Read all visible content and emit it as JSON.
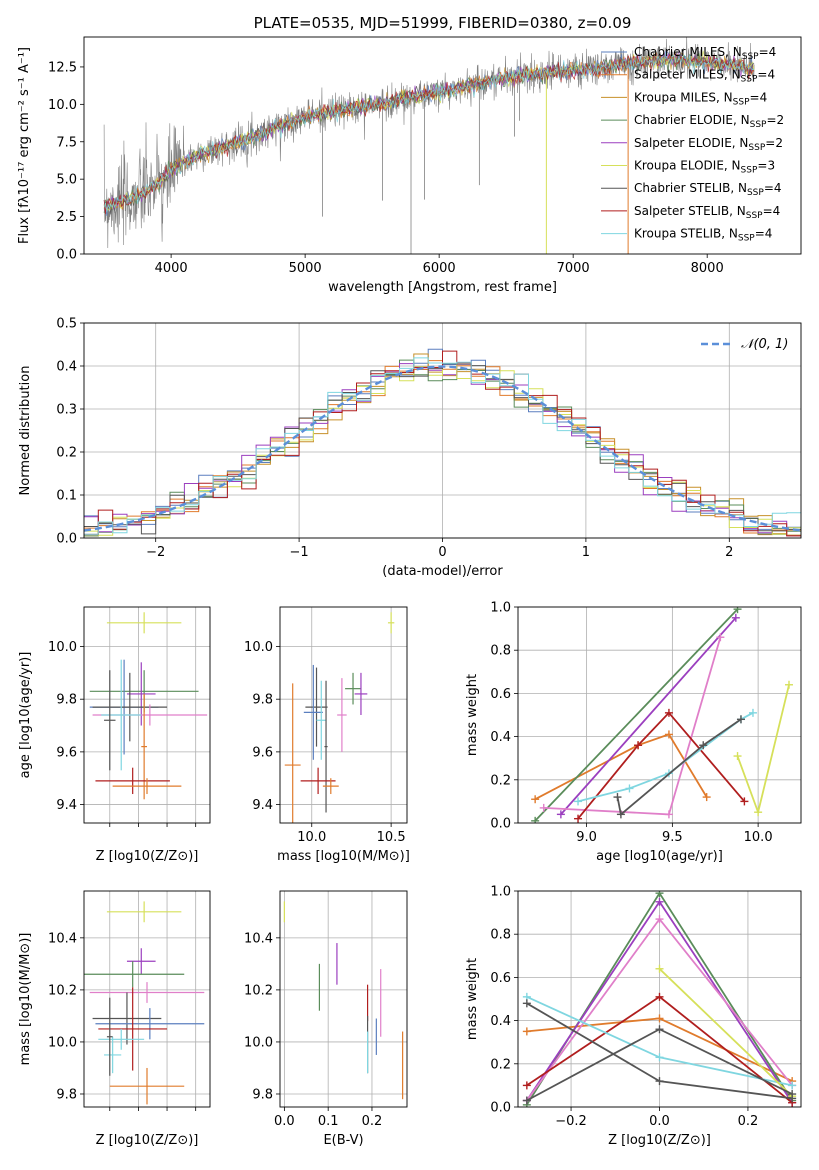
{
  "palette": [
    "#5b7fbf",
    "#e07b2c",
    "#c7902a",
    "#5a8c5a",
    "#9b3fbf",
    "#d6e05a",
    "#555555",
    "#b01e1e",
    "#7fd6e0",
    "#e07fc9"
  ],
  "chart_data": [
    {
      "id": "spectrum",
      "type": "line",
      "title": "PLATE=0535, MJD=51999, FIBERID=0380, z=0.09",
      "xlabel": "wavelength [Angstrom, rest frame]",
      "ylabel": "Flux [fλ10⁻¹⁷ erg cm⁻² s⁻¹ A⁻¹]",
      "xlim": [
        3350,
        8700
      ],
      "ylim": [
        0,
        14.5
      ],
      "xticks": [
        4000,
        5000,
        6000,
        7000,
        8000
      ],
      "yticks": [
        0.0,
        2.5,
        5.0,
        7.5,
        10.0,
        12.5
      ],
      "legend_position": "top-right",
      "legend": [
        "Chabrier MILES, N_SSP=4",
        "Salpeter MILES, N_SSP=4",
        "Kroupa MILES, N_SSP=4",
        "Chabrier ELODIE, N_SSP=2",
        "Salpeter ELODIE, N_SSP=2",
        "Kroupa ELODIE, N_SSP=3",
        "Chabrier STELIB, N_SSP=4",
        "Salpeter STELIB, N_SSP=4",
        "Kroupa STELIB, N_SSP=4"
      ],
      "continuum": [
        [
          3500,
          3.2
        ],
        [
          3700,
          3.6
        ],
        [
          3900,
          4.6
        ],
        [
          4000,
          5.6
        ],
        [
          4200,
          6.6
        ],
        [
          4400,
          7.2
        ],
        [
          4600,
          7.8
        ],
        [
          4800,
          8.5
        ],
        [
          5000,
          9.2
        ],
        [
          5200,
          9.5
        ],
        [
          5400,
          9.8
        ],
        [
          5600,
          10.1
        ],
        [
          5800,
          10.5
        ],
        [
          6000,
          10.8
        ],
        [
          6200,
          11.2
        ],
        [
          6400,
          11.6
        ],
        [
          6600,
          11.9
        ],
        [
          6800,
          12.1
        ],
        [
          7000,
          12.3
        ],
        [
          7200,
          12.4
        ],
        [
          7400,
          12.7
        ],
        [
          7600,
          12.9
        ],
        [
          7800,
          13.0
        ],
        [
          8000,
          12.8
        ],
        [
          8200,
          12.6
        ],
        [
          8350,
          12.4
        ]
      ],
      "grid": false
    },
    {
      "id": "residuals",
      "type": "histogram",
      "xlabel": "(data-model)/error",
      "ylabel": "Normed distribution",
      "xlim": [
        -2.5,
        2.5
      ],
      "ylim": [
        0,
        0.5
      ],
      "xticks": [
        -2,
        -1,
        0,
        1,
        2
      ],
      "yticks": [
        0.0,
        0.1,
        0.2,
        0.3,
        0.4,
        0.5
      ],
      "reference_label": "𝒩(0, 1)",
      "reference_color": "#5b8fd9",
      "legend_position": "top-right",
      "grid": true
    },
    {
      "id": "age_vs_Z",
      "type": "errorbar",
      "xlabel": "Z [log10(Z/Z⊙)]",
      "ylabel": "age  [log10(age/yr)]",
      "xlim": [
        -0.19,
        0.25
      ],
      "ylim": [
        9.33,
        10.15
      ],
      "xticks": [
        -0.1,
        0.0,
        0.1,
        0.2
      ],
      "xticklabels": [
        "",
        "",
        "",
        ""
      ],
      "yticks": [
        9.4,
        9.6,
        9.8,
        10.0
      ],
      "points": [
        {
          "x": 0.02,
          "y": 10.09,
          "xe": 0.13,
          "ye": 0.04,
          "c": 5
        },
        {
          "x": 0.02,
          "y": 9.83,
          "xe": 0.19,
          "ye": 0.08,
          "c": 3
        },
        {
          "x": 0.01,
          "y": 9.82,
          "xe": 0.05,
          "ye": 0.12,
          "c": 4
        },
        {
          "x": -0.05,
          "y": 9.77,
          "xe": 0.12,
          "ye": 0.18,
          "c": 0
        },
        {
          "x": -0.03,
          "y": 9.77,
          "xe": 0.13,
          "ye": 0.13,
          "c": 6
        },
        {
          "x": 0.04,
          "y": 9.74,
          "xe": 0.2,
          "ye": 0.04,
          "c": 9
        },
        {
          "x": -0.06,
          "y": 9.74,
          "xe": 0.07,
          "ye": 0.21,
          "c": 8
        },
        {
          "x": -0.1,
          "y": 9.72,
          "xe": 0.02,
          "ye": 0.19,
          "c": 6
        },
        {
          "x": 0.02,
          "y": 9.62,
          "xe": 0.01,
          "ye": 0.2,
          "c": 1
        },
        {
          "x": -0.02,
          "y": 9.49,
          "xe": 0.13,
          "ye": 0.05,
          "c": 7
        },
        {
          "x": 0.03,
          "y": 9.47,
          "xe": 0.12,
          "ye": 0.03,
          "c": 1
        }
      ],
      "grid": true
    },
    {
      "id": "age_vs_mass",
      "type": "errorbar",
      "xlabel": "mass [log10(M/M⊙)]",
      "ylabel": "",
      "xlim": [
        9.8,
        10.6
      ],
      "ylim": [
        9.33,
        10.15
      ],
      "xticks": [
        10.0,
        10.5
      ],
      "yticks": [
        9.4,
        9.6,
        9.8,
        10.0
      ],
      "points": [
        {
          "x": 10.5,
          "y": 10.09,
          "xe": 0.02,
          "ye": 0.04,
          "c": 5
        },
        {
          "x": 10.26,
          "y": 9.84,
          "xe": 0.05,
          "ye": 0.06,
          "c": 3
        },
        {
          "x": 10.31,
          "y": 9.82,
          "xe": 0.04,
          "ye": 0.08,
          "c": 4
        },
        {
          "x": 10.03,
          "y": 9.77,
          "xe": 0.07,
          "ye": 0.15,
          "c": 6
        },
        {
          "x": 10.01,
          "y": 9.75,
          "xe": 0.06,
          "ye": 0.18,
          "c": 0
        },
        {
          "x": 10.19,
          "y": 9.74,
          "xe": 0.03,
          "ye": 0.14,
          "c": 9
        },
        {
          "x": 10.06,
          "y": 9.72,
          "xe": 0.03,
          "ye": 0.15,
          "c": 8
        },
        {
          "x": 10.09,
          "y": 9.62,
          "xe": 0.01,
          "ye": 0.25,
          "c": 6
        },
        {
          "x": 9.88,
          "y": 9.55,
          "xe": 0.05,
          "ye": 0.31,
          "c": 1
        },
        {
          "x": 10.04,
          "y": 9.49,
          "xe": 0.11,
          "ye": 0.05,
          "c": 7
        },
        {
          "x": 10.12,
          "y": 9.47,
          "xe": 0.05,
          "ye": 0.03,
          "c": 1
        }
      ],
      "grid": true
    },
    {
      "id": "weight_vs_age",
      "type": "line",
      "xlabel": "age  [log10(age/yr)]",
      "ylabel": "mass weight",
      "xlim": [
        8.6,
        10.25
      ],
      "ylim": [
        0,
        1.0
      ],
      "xticks": [
        9.0,
        9.5,
        10.0
      ],
      "yticks": [
        0.0,
        0.2,
        0.4,
        0.6,
        0.8,
        1.0
      ],
      "series": [
        {
          "c": 1,
          "x": [
            8.7,
            9.3,
            9.48,
            9.7
          ],
          "y": [
            0.11,
            0.36,
            0.41,
            0.12
          ]
        },
        {
          "c": 3,
          "x": [
            8.7,
            9.88
          ],
          "y": [
            0.01,
            0.99
          ]
        },
        {
          "c": 4,
          "x": [
            8.85,
            9.87
          ],
          "y": [
            0.04,
            0.95
          ]
        },
        {
          "c": 9,
          "x": [
            8.75,
            9.48,
            9.78
          ],
          "y": [
            0.07,
            0.04,
            0.86
          ]
        },
        {
          "c": 7,
          "x": [
            8.95,
            9.3,
            9.48,
            9.92
          ],
          "y": [
            0.02,
            0.36,
            0.51,
            0.1
          ]
        },
        {
          "c": 8,
          "x": [
            8.95,
            9.25,
            9.48,
            9.9,
            9.97
          ],
          "y": [
            0.1,
            0.16,
            0.23,
            0.48,
            0.51
          ]
        },
        {
          "c": 5,
          "x": [
            9.88,
            10.0,
            10.18
          ],
          "y": [
            0.31,
            0.05,
            0.64
          ]
        },
        {
          "c": 6,
          "x": [
            9.18,
            9.2,
            9.68,
            9.9
          ],
          "y": [
            0.12,
            0.04,
            0.36,
            0.48
          ]
        }
      ],
      "grid": true
    },
    {
      "id": "mass_vs_Z",
      "type": "errorbar",
      "xlabel": "Z [log10(Z/Z⊙)]",
      "ylabel": "mass [log10(M/M⊙)]",
      "xlim": [
        -0.19,
        0.25
      ],
      "ylim": [
        9.75,
        10.58
      ],
      "xticks": [
        -0.1,
        0.0,
        0.1,
        0.2
      ],
      "xticklabels": [
        "",
        "",
        "",
        ""
      ],
      "yticks": [
        9.8,
        10.0,
        10.2,
        10.4
      ],
      "points": [
        {
          "x": 0.02,
          "y": 10.5,
          "xe": 0.13,
          "ye": 0.04,
          "c": 5
        },
        {
          "x": 0.01,
          "y": 10.31,
          "xe": 0.05,
          "ye": 0.05,
          "c": 4
        },
        {
          "x": -0.02,
          "y": 10.26,
          "xe": 0.18,
          "ye": 0.05,
          "c": 3
        },
        {
          "x": 0.03,
          "y": 10.19,
          "xe": 0.2,
          "ye": 0.04,
          "c": 9
        },
        {
          "x": -0.04,
          "y": 10.09,
          "xe": 0.12,
          "ye": 0.1,
          "c": 6
        },
        {
          "x": 0.04,
          "y": 10.07,
          "xe": 0.19,
          "ye": 0.06,
          "c": 0
        },
        {
          "x": -0.02,
          "y": 10.05,
          "xe": 0.12,
          "ye": 0.16,
          "c": 7
        },
        {
          "x": -0.06,
          "y": 10.01,
          "xe": 0.08,
          "ye": 0.04,
          "c": 8
        },
        {
          "x": -0.09,
          "y": 9.95,
          "xe": 0.03,
          "ye": 0.07,
          "c": 8
        },
        {
          "x": -0.1,
          "y": 10.02,
          "xe": 0.01,
          "ye": 0.15,
          "c": 6
        },
        {
          "x": 0.03,
          "y": 9.83,
          "xe": 0.13,
          "ye": 0.07,
          "c": 1
        }
      ],
      "grid": true
    },
    {
      "id": "mass_vs_ebv",
      "type": "errorbar",
      "xlabel": "E(B-V)",
      "ylabel": "",
      "xlim": [
        -0.01,
        0.28
      ],
      "ylim": [
        9.75,
        10.58
      ],
      "xticks": [
        0.0,
        0.1,
        0.2
      ],
      "yticks": [
        9.8,
        10.0,
        10.2,
        10.4
      ],
      "points": [
        {
          "x": 0.0,
          "y": 10.5,
          "xe": 0,
          "ye": 0.04,
          "c": 5
        },
        {
          "x": 0.08,
          "y": 10.21,
          "xe": 0,
          "ye": 0.09,
          "c": 3
        },
        {
          "x": 0.12,
          "y": 10.3,
          "xe": 0,
          "ye": 0.08,
          "c": 4
        },
        {
          "x": 0.22,
          "y": 10.15,
          "xe": 0,
          "ye": 0.13,
          "c": 9
        },
        {
          "x": 0.19,
          "y": 10.15,
          "xe": 0,
          "ye": 0.07,
          "c": 7
        },
        {
          "x": 0.19,
          "y": 9.99,
          "xe": 0,
          "ye": 0.11,
          "c": 6
        },
        {
          "x": 0.21,
          "y": 10.02,
          "xe": 0,
          "ye": 0.07,
          "c": 0
        },
        {
          "x": 0.19,
          "y": 9.96,
          "xe": 0,
          "ye": 0.08,
          "c": 8
        },
        {
          "x": 0.27,
          "y": 9.91,
          "xe": 0,
          "ye": 0.13,
          "c": 1
        }
      ],
      "grid": true
    },
    {
      "id": "weight_vs_Z",
      "type": "line",
      "xlabel": "Z [log10(Z/Z⊙)]",
      "ylabel": "mass weight",
      "xlim": [
        -0.32,
        0.32
      ],
      "ylim": [
        0,
        1.0
      ],
      "xticks": [
        -0.2,
        0.0,
        0.2
      ],
      "yticks": [
        0.0,
        0.2,
        0.4,
        0.6,
        0.8,
        1.0
      ],
      "series": [
        {
          "c": 1,
          "x": [
            -0.3,
            0.0,
            0.3
          ],
          "y": [
            0.35,
            0.41,
            0.12
          ]
        },
        {
          "c": 3,
          "x": [
            -0.3,
            0.0,
            0.3
          ],
          "y": [
            0.01,
            0.99,
            0.03
          ]
        },
        {
          "c": 4,
          "x": [
            -0.3,
            0.0,
            0.3
          ],
          "y": [
            0.03,
            0.95,
            0.02
          ]
        },
        {
          "c": 9,
          "x": [
            -0.3,
            0.0,
            0.3
          ],
          "y": [
            0.03,
            0.87,
            0.1
          ]
        },
        {
          "c": 7,
          "x": [
            -0.3,
            0.0,
            0.3
          ],
          "y": [
            0.1,
            0.51,
            0.02
          ]
        },
        {
          "c": 8,
          "x": [
            -0.3,
            0.0,
            0.3
          ],
          "y": [
            0.51,
            0.23,
            0.1
          ]
        },
        {
          "c": 5,
          "x": [
            0.0,
            0.3
          ],
          "y": [
            0.64,
            0.05
          ]
        },
        {
          "c": 6,
          "x": [
            -0.3,
            0.0,
            0.3
          ],
          "y": [
            0.48,
            0.12,
            0.04
          ]
        },
        {
          "c": 6,
          "x": [
            -0.3,
            0.0,
            0.3
          ],
          "y": [
            0.03,
            0.36,
            0.06
          ]
        }
      ],
      "grid": true
    }
  ]
}
